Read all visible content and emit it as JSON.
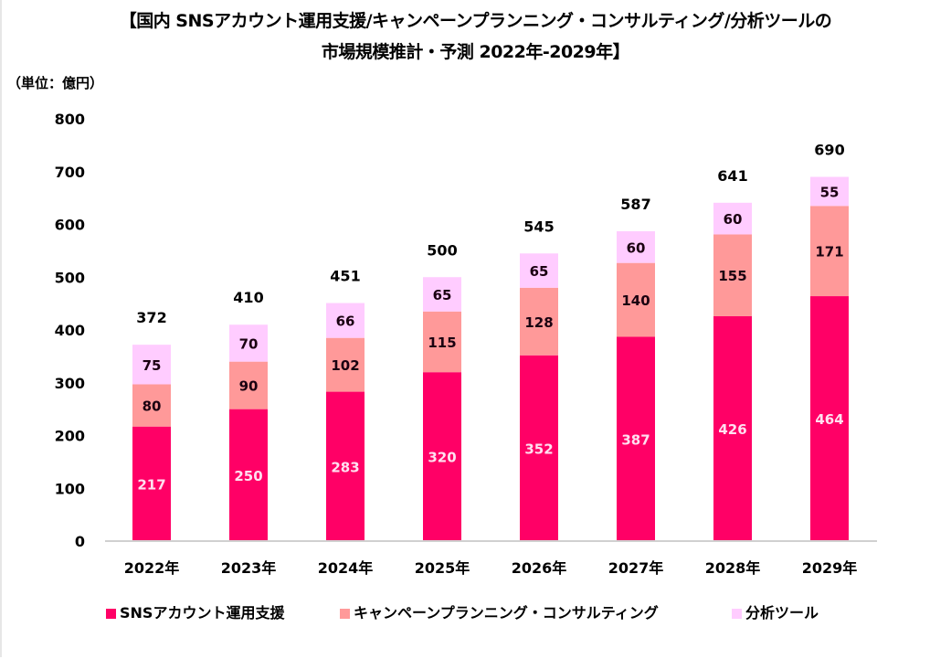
{
  "header": {
    "title_line1": "【国内 SNSアカウント運用支援/キャンペーンプランニング・コンサルティング/分析ツールの",
    "title_line2": "市場規模推計・予測 2022年-2029年】",
    "unit": "（単位：億円）"
  },
  "chart_data": {
    "type": "bar",
    "stacked": true,
    "title": "【国内 SNSアカウント運用支援/キャンペーンプランニング・コンサルティング/分析ツールの市場規模推計・予測 2022年-2029年】",
    "xlabel": "",
    "ylabel": "（単位：億円）",
    "ylim": [
      0,
      800
    ],
    "yticks": [
      0,
      100,
      200,
      300,
      400,
      500,
      600,
      700,
      800
    ],
    "grid": false,
    "legend_position": "bottom",
    "categories": [
      "2022年",
      "2023年",
      "2024年",
      "2025年",
      "2026年",
      "2027年",
      "2028年",
      "2029年"
    ],
    "series": [
      {
        "name": "SNSアカウント運用支援",
        "color": "#ff0066",
        "label_color": "#ffe0f0",
        "values": [
          217,
          250,
          283,
          320,
          352,
          387,
          426,
          464
        ]
      },
      {
        "name": "キャンペーンプランニング・コンサルティング",
        "color": "#ff9999",
        "label_color": "#1a0010",
        "values": [
          80,
          90,
          102,
          115,
          128,
          140,
          155,
          171
        ]
      },
      {
        "name": "分析ツール",
        "color": "#ffccff",
        "label_color": "#1a0010",
        "values": [
          75,
          70,
          66,
          65,
          65,
          60,
          60,
          55
        ]
      }
    ],
    "totals": [
      372,
      410,
      451,
      500,
      545,
      587,
      641,
      690
    ]
  }
}
